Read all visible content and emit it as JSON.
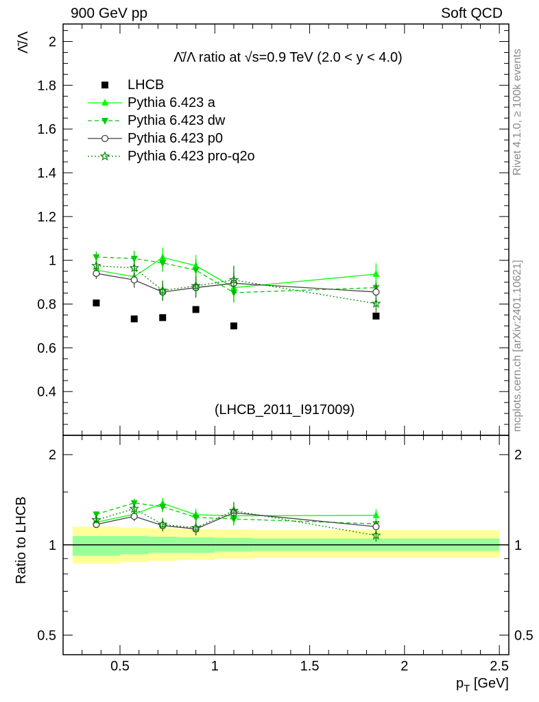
{
  "header": {
    "left_label": "900 GeV pp",
    "right_label": "Soft QCD"
  },
  "side_labels": {
    "rivet": "Rivet 4.1.0, ≥ 100k events",
    "mcplots": "mcplots.cern.ch [arXiv:2401.10621]"
  },
  "chart_data": [
    {
      "type": "line",
      "panel": "main",
      "title": "Λ̄/Λ ratio at √s=0.9 TeV (2.0 < y < 4.0)",
      "watermark": "(LHCB_2011_I917009)",
      "ylabel": "Λ̄/Λ",
      "xlabel": "",
      "xlim": [
        0.2,
        2.55
      ],
      "ylim": [
        0.2,
        2.08
      ],
      "yticks": [
        0.4,
        0.6,
        0.8,
        1.0,
        1.2,
        1.4,
        1.6,
        1.8,
        2.0
      ],
      "ytick_labels": [
        "0.4",
        "0.6",
        "0.8",
        "1",
        "1.2",
        "1.4",
        "1.6",
        "1.8",
        "2"
      ],
      "legend_position": "top-left",
      "data": {
        "name": "LHCB",
        "x": [
          0.375,
          0.575,
          0.725,
          0.9,
          1.1,
          1.85
        ],
        "x_lo": [
          0.25,
          0.5,
          0.65,
          0.8,
          1.0,
          1.2
        ],
        "x_hi": [
          0.5,
          0.65,
          0.8,
          1.0,
          1.2,
          2.5
        ],
        "y": [
          0.805,
          0.732,
          0.738,
          0.775,
          0.7,
          0.745
        ],
        "yerr": [
          0.01,
          0.01,
          0.01,
          0.01,
          0.01,
          0.01
        ]
      },
      "series": [
        {
          "name": "Pythia 6.423 a",
          "color": "#00ff00",
          "marker": "triangle-up",
          "dash": "solid",
          "x": [
            0.375,
            0.575,
            0.725,
            0.9,
            1.1,
            1.85
          ],
          "y": [
            0.955,
            0.925,
            1.013,
            0.975,
            0.875,
            0.937
          ],
          "yerr": [
            0.02,
            0.03,
            0.045,
            0.05,
            0.06,
            0.05
          ]
        },
        {
          "name": "Pythia 6.423 dw",
          "color": "#00cc00",
          "marker": "triangle-down",
          "dash": "dashed",
          "x": [
            0.375,
            0.575,
            0.725,
            0.9,
            1.1,
            1.85
          ],
          "y": [
            1.015,
            1.008,
            0.988,
            0.955,
            0.852,
            0.875
          ],
          "yerr": [
            0.025,
            0.035,
            0.04,
            0.05,
            0.045,
            0.035
          ]
        },
        {
          "name": "Pythia 6.423 p0",
          "color": "#404040",
          "marker": "circle-open",
          "dash": "solid",
          "x": [
            0.375,
            0.575,
            0.725,
            0.9,
            1.1,
            1.85
          ],
          "y": [
            0.94,
            0.91,
            0.855,
            0.875,
            0.895,
            0.855
          ],
          "yerr": [
            0.025,
            0.035,
            0.04,
            0.045,
            0.05,
            0.04
          ]
        },
        {
          "name": "Pythia 6.423 pro-q2o",
          "color": "#008800",
          "marker": "star-open",
          "dash": "dotted",
          "x": [
            0.375,
            0.575,
            0.725,
            0.9,
            1.1,
            1.85
          ],
          "y": [
            0.975,
            0.965,
            0.862,
            0.883,
            0.91,
            0.802
          ],
          "yerr": [
            0.025,
            0.03,
            0.045,
            0.045,
            0.065,
            0.04
          ]
        }
      ]
    },
    {
      "type": "line",
      "panel": "ratio",
      "ylabel": "Ratio to LHCB",
      "xlabel": "p_T [GeV]",
      "xlabel_main": "p",
      "xlabel_sub": "T",
      "xlabel_unit": " [GeV]",
      "xlim": [
        0.2,
        2.55
      ],
      "xticks": [
        0.5,
        1.0,
        1.5,
        2.0,
        2.5
      ],
      "xtick_labels": [
        "0.5",
        "1",
        "1.5",
        "2",
        "2.5"
      ],
      "ylim": [
        0.43,
        2.32
      ],
      "yscale": "log",
      "yticks": [
        0.5,
        1.0,
        2.0
      ],
      "ytick_labels": [
        "0.5",
        "1",
        "2"
      ],
      "bands": {
        "x_lo": [
          0.25,
          0.5,
          0.65,
          0.8,
          1.0,
          1.2
        ],
        "x_hi": [
          0.5,
          0.65,
          0.8,
          1.0,
          1.2,
          2.5
        ],
        "inner_lo": [
          0.92,
          0.93,
          0.94,
          0.94,
          0.95,
          0.955
        ],
        "inner_hi": [
          1.07,
          1.07,
          1.065,
          1.06,
          1.055,
          1.05
        ],
        "outer_lo": [
          0.865,
          0.875,
          0.885,
          0.89,
          0.9,
          0.905
        ],
        "outer_hi": [
          1.15,
          1.14,
          1.135,
          1.13,
          1.125,
          1.12
        ]
      },
      "series": [
        {
          "name": "Pythia 6.423 a",
          "y": [
            1.19,
            1.265,
            1.375,
            1.26,
            1.25,
            1.255
          ],
          "yerr": [
            0.03,
            0.04,
            0.06,
            0.06,
            0.08,
            0.06
          ]
        },
        {
          "name": "Pythia 6.423 dw",
          "y": [
            1.265,
            1.38,
            1.34,
            1.235,
            1.22,
            1.175
          ],
          "yerr": [
            0.03,
            0.045,
            0.055,
            0.06,
            0.06,
            0.05
          ]
        },
        {
          "name": "Pythia 6.423 p0",
          "y": [
            1.17,
            1.245,
            1.16,
            1.13,
            1.28,
            1.15
          ],
          "yerr": [
            0.03,
            0.045,
            0.05,
            0.055,
            0.07,
            0.05
          ]
        },
        {
          "name": "Pythia 6.423 pro-q2o",
          "y": [
            1.21,
            1.32,
            1.17,
            1.14,
            1.3,
            1.075
          ],
          "yerr": [
            0.03,
            0.04,
            0.06,
            0.06,
            0.09,
            0.05
          ]
        }
      ]
    }
  ]
}
